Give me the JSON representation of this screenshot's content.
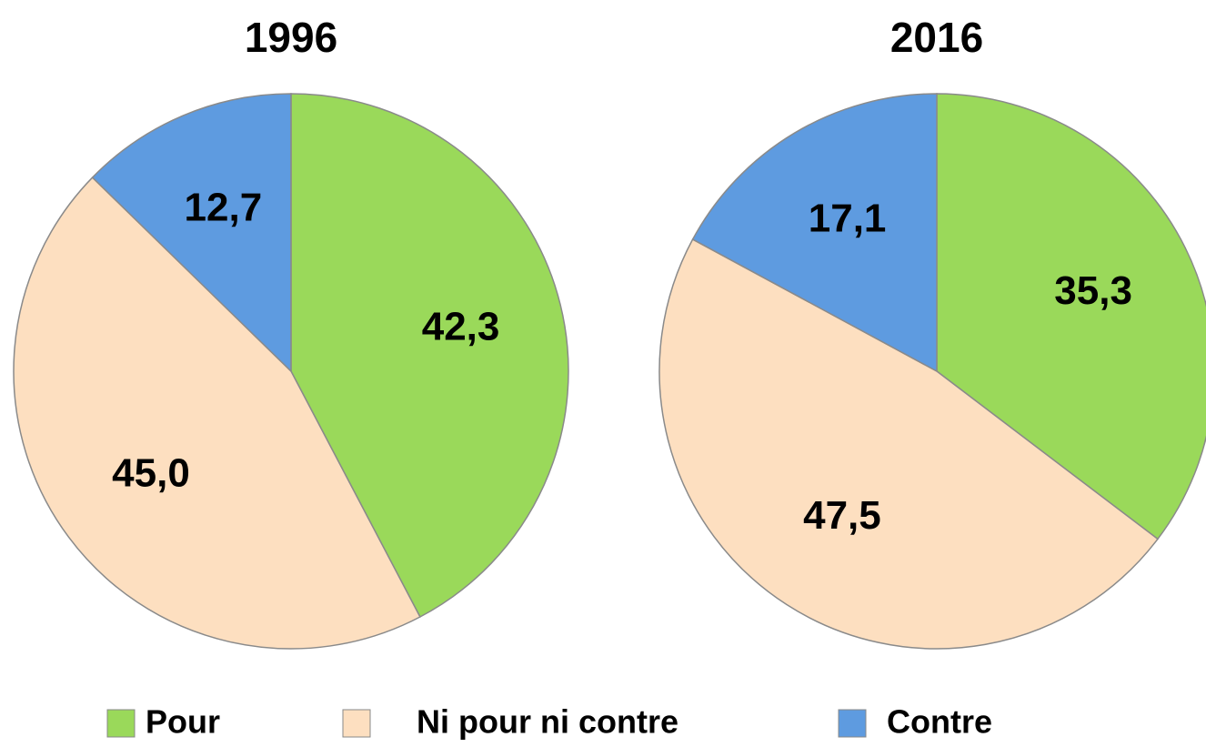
{
  "chart_data": [
    {
      "type": "pie",
      "title": "1996",
      "values": [
        42.3,
        45.0,
        12.7
      ],
      "value_labels": [
        "42,3",
        "45,0",
        "12,7"
      ]
    },
    {
      "type": "pie",
      "title": "2016",
      "values": [
        35.3,
        47.5,
        17.1
      ],
      "value_labels": [
        "35,3",
        "47,5",
        "17,1"
      ]
    }
  ],
  "legend": {
    "items": [
      {
        "label": "Pour",
        "color": "#9ad95a"
      },
      {
        "label": "Ni pour ni contre",
        "color": "#fddfc0"
      },
      {
        "label": "Contre",
        "color": "#5e9be0"
      }
    ]
  }
}
